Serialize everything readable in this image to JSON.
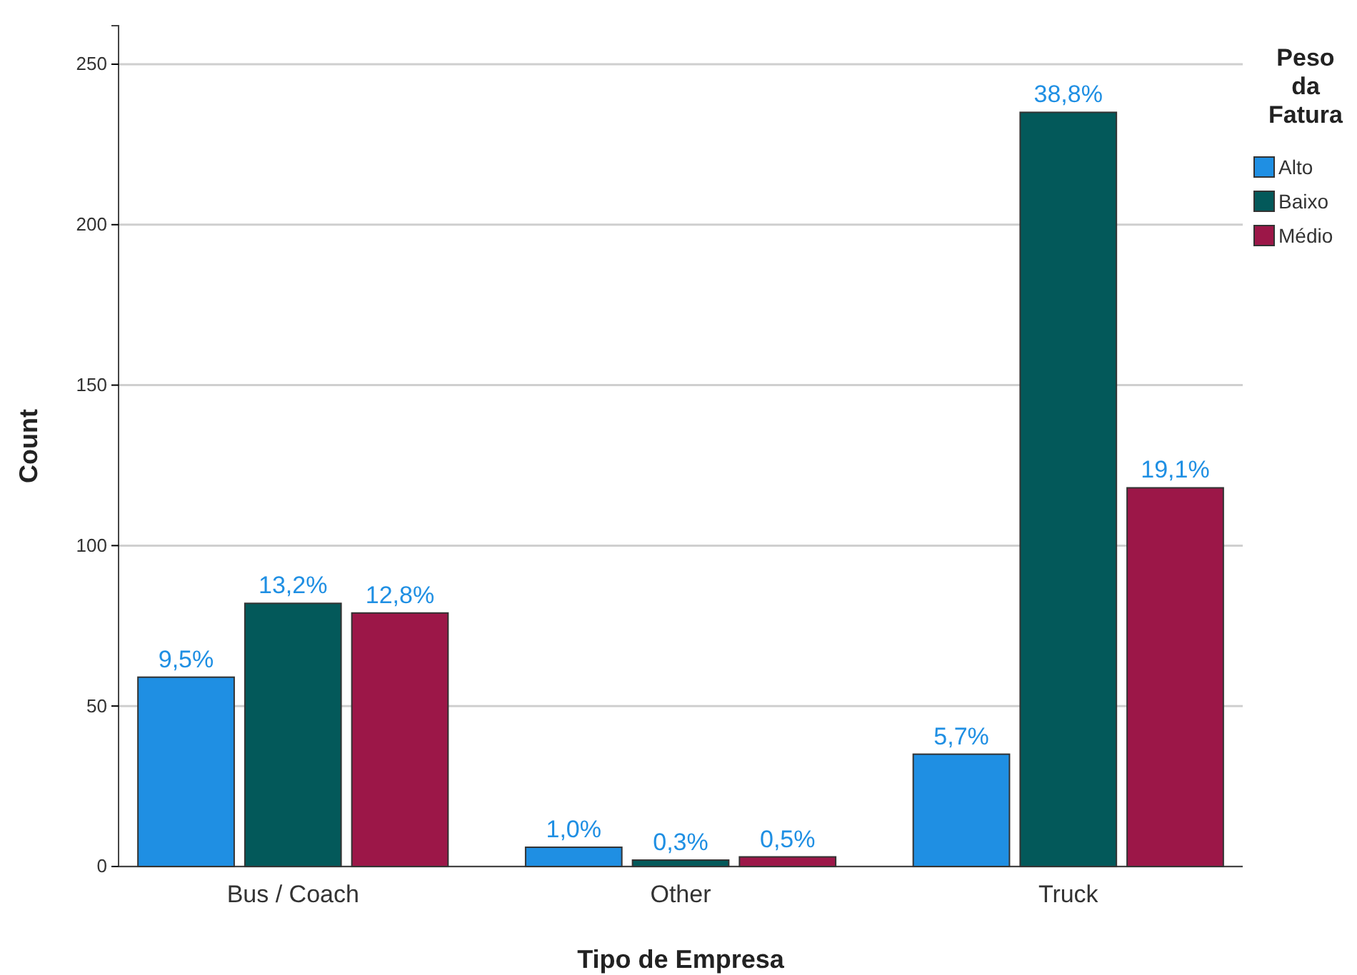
{
  "chart_data": {
    "type": "bar",
    "xlabel": "Tipo de Empresa",
    "ylabel": "Count",
    "legend_title": "Peso da Fatura",
    "categories": [
      "Bus / Coach",
      "Other",
      "Truck"
    ],
    "series": [
      {
        "name": "Alto",
        "color": "#1f8fe3",
        "values": [
          59,
          6,
          35
        ]
      },
      {
        "name": "Baixo",
        "color": "#03595a",
        "values": [
          82,
          2,
          235
        ]
      },
      {
        "name": "Médio",
        "color": "#9c1748",
        "values": [
          79,
          3,
          118
        ]
      }
    ],
    "annotations": [
      "9,5%",
      "1,0%",
      "5,7%",
      "13,2%",
      "0,3%",
      "38,8%",
      "12,8%",
      "0,5%",
      "19,1%"
    ],
    "ylim": [
      0,
      262
    ],
    "yticks": [
      0,
      50,
      100,
      150,
      200,
      250
    ],
    "grid": "y",
    "legend": "top right"
  }
}
